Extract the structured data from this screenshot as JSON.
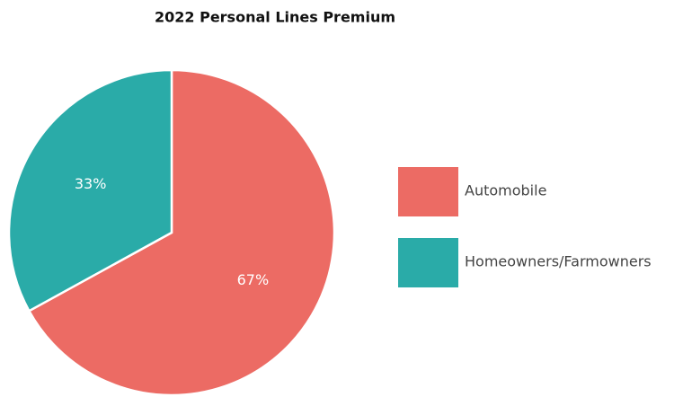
{
  "chart_data": {
    "type": "pie",
    "title": "2022 Personal Lines Premium",
    "categories": [
      "Automobile",
      "Homeowners/Farmowners"
    ],
    "values": [
      67,
      33
    ],
    "value_labels": [
      "67%",
      "33%"
    ],
    "colors": [
      "#ec6b64",
      "#2aaba8"
    ],
    "legend": "right"
  }
}
